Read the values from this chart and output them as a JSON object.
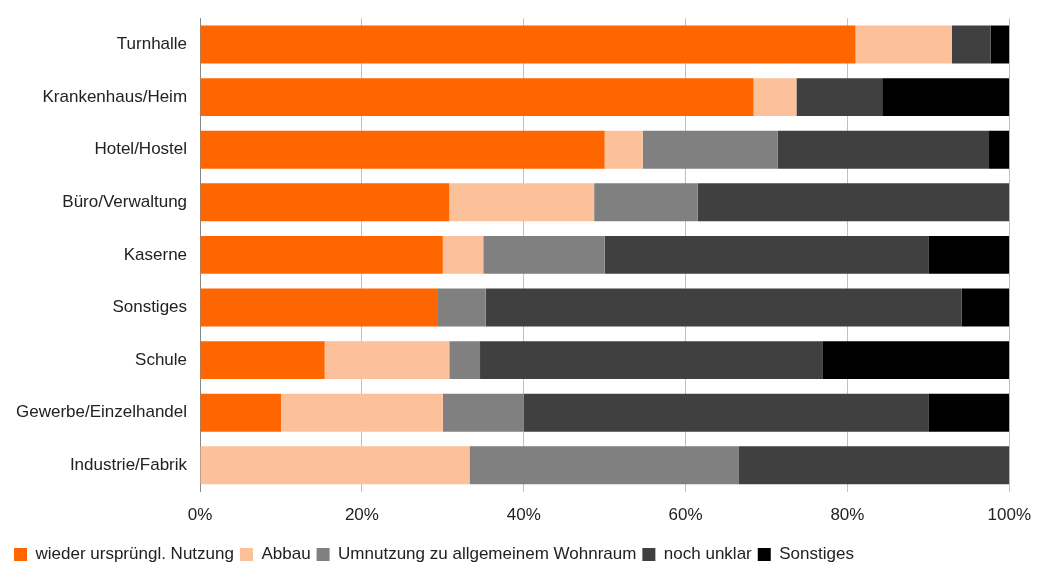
{
  "chart_data": {
    "type": "bar",
    "orientation": "horizontal",
    "stacked": true,
    "categories": [
      "Turnhalle",
      "Krankenhaus/Heim",
      "Hotel/Hostel",
      "Büro/Verwaltung",
      "Kaserne",
      "Sonstiges",
      "Schule",
      "Gewerbe/Einzelhandel",
      "Industrie/Fabrik"
    ],
    "series": [
      {
        "name": "wieder ursprüngl. Nutzung",
        "color": "#ff6600",
        "values": [
          81,
          68.4,
          50,
          30.8,
          30,
          29.4,
          15.4,
          10,
          0
        ]
      },
      {
        "name": "Abbau",
        "color": "#fcc09a",
        "values": [
          11.9,
          5.3,
          4.7,
          17.9,
          5,
          0,
          15.4,
          20,
          33.3
        ]
      },
      {
        "name": "Umnutzung zu allgemeinem Wohnraum",
        "color": "#808080",
        "values": [
          0,
          0,
          16.7,
          12.8,
          15,
          5.9,
          3.8,
          10,
          33.3
        ]
      },
      {
        "name": "noch unklar",
        "color": "#404040",
        "values": [
          4.8,
          10.6,
          26.1,
          38.5,
          40,
          58.8,
          42.3,
          50,
          33.4
        ]
      },
      {
        "name": "Sonstiges",
        "color": "#000000",
        "values": [
          2.3,
          15.7,
          2.5,
          0,
          10,
          5.9,
          23.1,
          10,
          0
        ]
      }
    ],
    "xlim": [
      0,
      100
    ],
    "xticks": [
      {
        "value": 0,
        "label": "0%"
      },
      {
        "value": 20,
        "label": "20%"
      },
      {
        "value": 40,
        "label": "40%"
      },
      {
        "value": 60,
        "label": "60%"
      },
      {
        "value": 80,
        "label": "80%"
      },
      {
        "value": 100,
        "label": "100%"
      }
    ],
    "grid": "x",
    "legend": "bottom left"
  }
}
